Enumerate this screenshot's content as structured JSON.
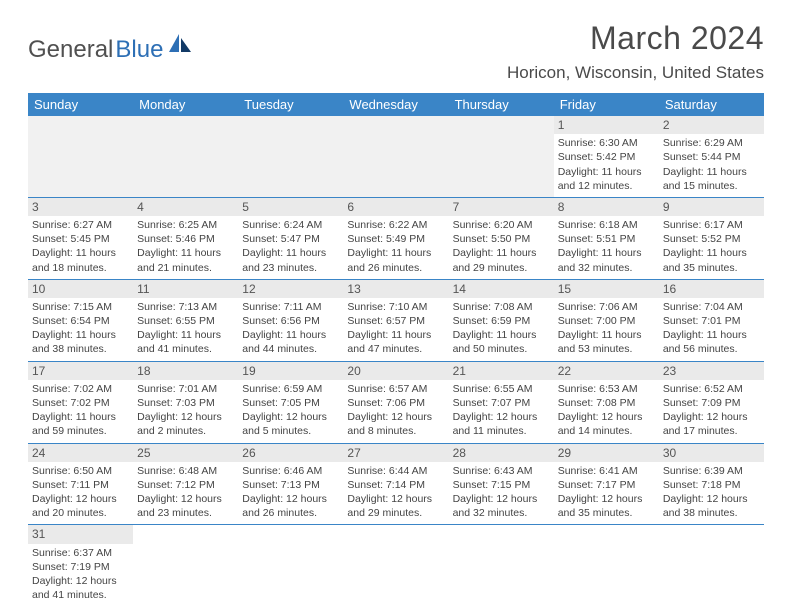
{
  "brand": {
    "part1": "General",
    "part2": "Blue"
  },
  "title": "March 2024",
  "location": "Horicon, Wisconsin, United States",
  "colors": {
    "header_bg": "#3a85c7",
    "header_text": "#ffffff",
    "daynum_bg": "#eaeaea",
    "rule": "#3a85c7",
    "brand_blue": "#2d6fb5",
    "text": "#444444"
  },
  "daysOfWeek": [
    "Sunday",
    "Monday",
    "Tuesday",
    "Wednesday",
    "Thursday",
    "Friday",
    "Saturday"
  ],
  "weeks": [
    [
      null,
      null,
      null,
      null,
      null,
      {
        "n": "1",
        "sunrise": "6:30 AM",
        "sunset": "5:42 PM",
        "dayH": "11",
        "dayM": "12"
      },
      {
        "n": "2",
        "sunrise": "6:29 AM",
        "sunset": "5:44 PM",
        "dayH": "11",
        "dayM": "15"
      }
    ],
    [
      {
        "n": "3",
        "sunrise": "6:27 AM",
        "sunset": "5:45 PM",
        "dayH": "11",
        "dayM": "18"
      },
      {
        "n": "4",
        "sunrise": "6:25 AM",
        "sunset": "5:46 PM",
        "dayH": "11",
        "dayM": "21"
      },
      {
        "n": "5",
        "sunrise": "6:24 AM",
        "sunset": "5:47 PM",
        "dayH": "11",
        "dayM": "23"
      },
      {
        "n": "6",
        "sunrise": "6:22 AM",
        "sunset": "5:49 PM",
        "dayH": "11",
        "dayM": "26"
      },
      {
        "n": "7",
        "sunrise": "6:20 AM",
        "sunset": "5:50 PM",
        "dayH": "11",
        "dayM": "29"
      },
      {
        "n": "8",
        "sunrise": "6:18 AM",
        "sunset": "5:51 PM",
        "dayH": "11",
        "dayM": "32"
      },
      {
        "n": "9",
        "sunrise": "6:17 AM",
        "sunset": "5:52 PM",
        "dayH": "11",
        "dayM": "35"
      }
    ],
    [
      {
        "n": "10",
        "sunrise": "7:15 AM",
        "sunset": "6:54 PM",
        "dayH": "11",
        "dayM": "38"
      },
      {
        "n": "11",
        "sunrise": "7:13 AM",
        "sunset": "6:55 PM",
        "dayH": "11",
        "dayM": "41"
      },
      {
        "n": "12",
        "sunrise": "7:11 AM",
        "sunset": "6:56 PM",
        "dayH": "11",
        "dayM": "44"
      },
      {
        "n": "13",
        "sunrise": "7:10 AM",
        "sunset": "6:57 PM",
        "dayH": "11",
        "dayM": "47"
      },
      {
        "n": "14",
        "sunrise": "7:08 AM",
        "sunset": "6:59 PM",
        "dayH": "11",
        "dayM": "50"
      },
      {
        "n": "15",
        "sunrise": "7:06 AM",
        "sunset": "7:00 PM",
        "dayH": "11",
        "dayM": "53"
      },
      {
        "n": "16",
        "sunrise": "7:04 AM",
        "sunset": "7:01 PM",
        "dayH": "11",
        "dayM": "56"
      }
    ],
    [
      {
        "n": "17",
        "sunrise": "7:02 AM",
        "sunset": "7:02 PM",
        "dayH": "11",
        "dayM": "59"
      },
      {
        "n": "18",
        "sunrise": "7:01 AM",
        "sunset": "7:03 PM",
        "dayH": "12",
        "dayM": "2"
      },
      {
        "n": "19",
        "sunrise": "6:59 AM",
        "sunset": "7:05 PM",
        "dayH": "12",
        "dayM": "5"
      },
      {
        "n": "20",
        "sunrise": "6:57 AM",
        "sunset": "7:06 PM",
        "dayH": "12",
        "dayM": "8"
      },
      {
        "n": "21",
        "sunrise": "6:55 AM",
        "sunset": "7:07 PM",
        "dayH": "12",
        "dayM": "11"
      },
      {
        "n": "22",
        "sunrise": "6:53 AM",
        "sunset": "7:08 PM",
        "dayH": "12",
        "dayM": "14"
      },
      {
        "n": "23",
        "sunrise": "6:52 AM",
        "sunset": "7:09 PM",
        "dayH": "12",
        "dayM": "17"
      }
    ],
    [
      {
        "n": "24",
        "sunrise": "6:50 AM",
        "sunset": "7:11 PM",
        "dayH": "12",
        "dayM": "20"
      },
      {
        "n": "25",
        "sunrise": "6:48 AM",
        "sunset": "7:12 PM",
        "dayH": "12",
        "dayM": "23"
      },
      {
        "n": "26",
        "sunrise": "6:46 AM",
        "sunset": "7:13 PM",
        "dayH": "12",
        "dayM": "26"
      },
      {
        "n": "27",
        "sunrise": "6:44 AM",
        "sunset": "7:14 PM",
        "dayH": "12",
        "dayM": "29"
      },
      {
        "n": "28",
        "sunrise": "6:43 AM",
        "sunset": "7:15 PM",
        "dayH": "12",
        "dayM": "32"
      },
      {
        "n": "29",
        "sunrise": "6:41 AM",
        "sunset": "7:17 PM",
        "dayH": "12",
        "dayM": "35"
      },
      {
        "n": "30",
        "sunrise": "6:39 AM",
        "sunset": "7:18 PM",
        "dayH": "12",
        "dayM": "38"
      }
    ],
    [
      {
        "n": "31",
        "sunrise": "6:37 AM",
        "sunset": "7:19 PM",
        "dayH": "12",
        "dayM": "41"
      },
      null,
      null,
      null,
      null,
      null,
      null
    ]
  ]
}
